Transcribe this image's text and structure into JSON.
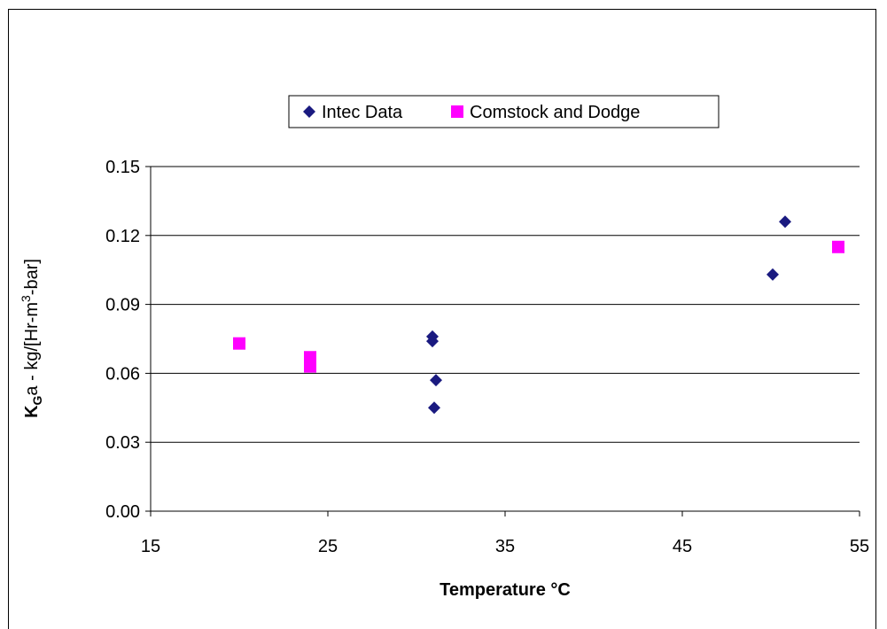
{
  "chart_data": {
    "type": "scatter",
    "xlabel": "Temperature °C",
    "ylabel": {
      "main": "K",
      "sub": "G",
      "rest_a": "a - kg/[Hr-m",
      "sup": "3",
      "rest_b": "-bar]"
    },
    "xlim": [
      15,
      55
    ],
    "ylim": [
      0,
      0.15
    ],
    "x_ticks": [
      "15",
      "25",
      "35",
      "45",
      "55"
    ],
    "y_ticks": [
      "0.00",
      "0.03",
      "0.06",
      "0.09",
      "0.12",
      "0.15"
    ],
    "grid": "horizontal major gridlines",
    "legend_position": "top-center",
    "series": [
      {
        "name": "Intec Data",
        "marker": "diamond",
        "color": "#1a1a80",
        "x": [
          30.9,
          30.9,
          31.1,
          31.0,
          50.1,
          50.8
        ],
        "y": [
          0.076,
          0.074,
          0.057,
          0.045,
          0.103,
          0.126
        ]
      },
      {
        "name": "Comstock and Dodge",
        "marker": "square",
        "color": "#ff00ff",
        "x": [
          20.0,
          24.0,
          24.0,
          24.0,
          53.8
        ],
        "y": [
          0.073,
          0.067,
          0.065,
          0.063,
          0.115
        ]
      }
    ]
  }
}
